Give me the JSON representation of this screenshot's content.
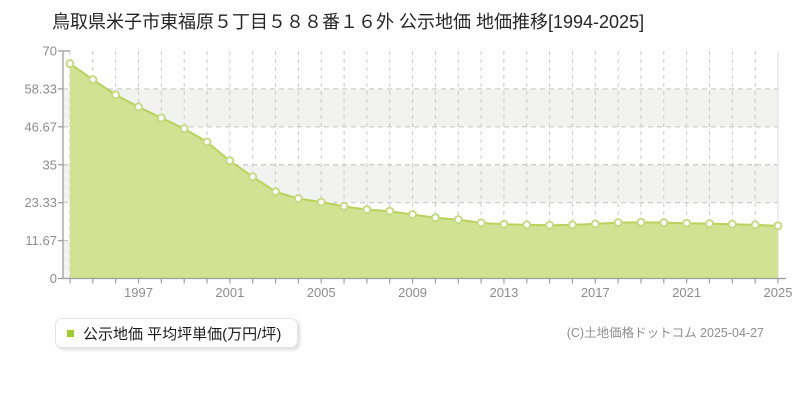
{
  "title": "鳥取県米子市東福原５丁目５８８番１６外 公示地価 地価推移[1994-2025]",
  "legend": {
    "label": "公示地価 平均坪単価(万円/坪)",
    "swatch_color": "#a4cb2d"
  },
  "footer": {
    "copyright": "(C)土地価格ドットコム 2025-04-27"
  },
  "chart_data": {
    "type": "area",
    "title": "公示地価 地価推移[1994-2025]",
    "x": [
      1994,
      1995,
      1996,
      1997,
      1998,
      1999,
      2000,
      2001,
      2002,
      2003,
      2004,
      2005,
      2006,
      2007,
      2008,
      2009,
      2010,
      2011,
      2012,
      2013,
      2014,
      2015,
      2016,
      2017,
      2018,
      2019,
      2020,
      2021,
      2022,
      2023,
      2024,
      2025
    ],
    "series": [
      {
        "name": "公示地価 平均坪単価(万円/坪)",
        "values": [
          66.1,
          61.2,
          56.5,
          52.8,
          49.4,
          46.1,
          42.0,
          36.2,
          31.3,
          26.7,
          24.6,
          23.5,
          22.2,
          21.2,
          20.7,
          19.7,
          18.7,
          18.1,
          17.1,
          16.7,
          16.5,
          16.4,
          16.5,
          16.8,
          17.2,
          17.3,
          17.2,
          17.0,
          16.9,
          16.7,
          16.5,
          16.2
        ]
      }
    ],
    "ylim": [
      0,
      70
    ],
    "yticks": [
      70,
      58.33,
      46.67,
      35,
      23.33,
      11.67,
      0
    ],
    "ytick_labels": [
      "70",
      "58.33",
      "46.67",
      "35",
      "23.33",
      "11.67",
      "0"
    ],
    "xtick_labels": [
      "1997",
      "2001",
      "2005",
      "2009",
      "2013",
      "2017",
      "2021",
      "2025"
    ],
    "grid": true,
    "legend_position": "bottom-left",
    "colors": {
      "area_fill": "#d1e292",
      "line": "#b8d25c",
      "marker_fill": "#ffffff",
      "marker_stroke": "#c6db81",
      "band_alt": "#f2f2f0",
      "band_main": "#ffffff",
      "grid": "#c9c9c9",
      "axis": "#9e9e9e",
      "tick_text": "#8d8d8d"
    }
  }
}
